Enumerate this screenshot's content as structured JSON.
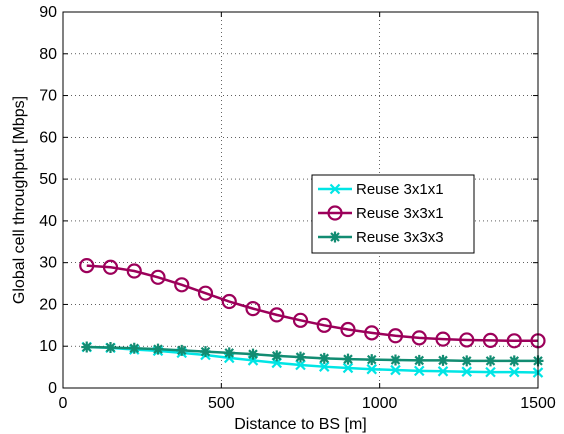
{
  "chart_data": {
    "type": "line",
    "xlabel": "Distance to BS [m]",
    "ylabel": "Global cell throughput [Mbps]",
    "xlim": [
      0,
      1500
    ],
    "ylim": [
      0,
      90
    ],
    "x_ticks": [
      0,
      500,
      1000,
      1500
    ],
    "y_ticks": [
      0,
      10,
      20,
      30,
      40,
      50,
      60,
      70,
      80,
      90
    ],
    "grid": true,
    "legend_position": "center-right",
    "x": [
      75,
      150,
      225,
      300,
      375,
      450,
      525,
      600,
      675,
      750,
      825,
      900,
      975,
      1050,
      1125,
      1200,
      1275,
      1350,
      1425,
      1500
    ],
    "series": [
      {
        "name": "Reuse 3x1x1",
        "color": "#00e5e5",
        "marker": "x",
        "values": [
          9.8,
          9.6,
          9.2,
          8.9,
          8.4,
          7.9,
          7.2,
          6.6,
          6.0,
          5.5,
          5.1,
          4.8,
          4.5,
          4.3,
          4.1,
          4.0,
          3.9,
          3.8,
          3.8,
          3.7
        ]
      },
      {
        "name": "Reuse 3x3x1",
        "color": "#9c005a",
        "marker": "circle",
        "values": [
          29.3,
          28.9,
          28.0,
          26.5,
          24.7,
          22.7,
          20.7,
          19.0,
          17.5,
          16.2,
          15.0,
          14.0,
          13.2,
          12.5,
          12.0,
          11.7,
          11.5,
          11.4,
          11.3,
          11.3
        ]
      },
      {
        "name": "Reuse 3x3x3",
        "color": "#128c72",
        "marker": "star",
        "values": [
          9.8,
          9.7,
          9.5,
          9.3,
          9.0,
          8.7,
          8.4,
          8.1,
          7.7,
          7.4,
          7.1,
          6.9,
          6.8,
          6.7,
          6.6,
          6.6,
          6.5,
          6.5,
          6.5,
          6.5
        ]
      }
    ]
  }
}
